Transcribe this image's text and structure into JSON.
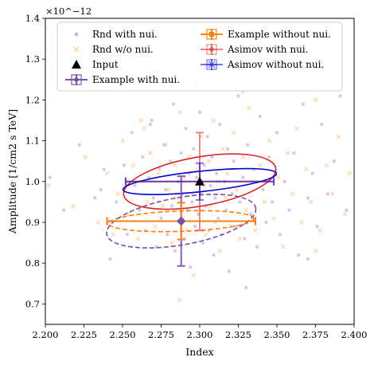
{
  "chart_data": {
    "type": "scatter",
    "xlabel": "Index",
    "ylabel": "Amplitude [1/cm2 s TeV]",
    "y_multiplier_label": "×10^−12",
    "xlim": [
      2.2,
      2.4
    ],
    "ylim": [
      0.65,
      1.4
    ],
    "x_ticks": [
      "2.200",
      "2.225",
      "2.250",
      "2.275",
      "2.300",
      "2.325",
      "2.350",
      "2.375",
      "2.400"
    ],
    "y_ticks": [
      "0.7",
      "0.8",
      "0.9",
      "1.0",
      "1.1",
      "1.2",
      "1.3",
      "1.4"
    ],
    "legend": {
      "placement": "top",
      "entries": [
        {
          "label": "Rnd with nui.",
          "marker": "dot",
          "color": "#8c6bb1"
        },
        {
          "label": "Example without nui.",
          "marker": "square-errbar",
          "color": "#ff7f0e"
        },
        {
          "label": "Rnd w/o nui.",
          "marker": "x",
          "color": "#ffbb78"
        },
        {
          "label": "Asimov with nui.",
          "marker": "diamond-errbar",
          "color": "#d62728"
        },
        {
          "label": "Input",
          "marker": "triangle",
          "color": "#000000"
        },
        {
          "label": "Asimov without nui.",
          "marker": "star-errbar",
          "color": "#0000cc"
        },
        {
          "label": "Example with nui.",
          "marker": "diamond-errbar",
          "color": "#7b4fa8"
        }
      ]
    },
    "input_point": {
      "x": 2.3,
      "y": 1.0
    },
    "example_with_nui": {
      "x": 2.288,
      "y": 0.903,
      "xerr": 0.048,
      "yerr": 0.11,
      "color": "#7b4fa8",
      "ellipse": {
        "rx": 0.049,
        "ry": 0.116,
        "angle_deg": 10,
        "dashed": true
      }
    },
    "example_without_nui": {
      "x": 2.288,
      "y": 0.903,
      "xerr": 0.048,
      "yerr": 0.045,
      "color": "#ff7f0e",
      "ellipse": {
        "rx": 0.047,
        "ry": 0.05,
        "angle_deg": 2,
        "dashed": true
      }
    },
    "asimov_with_nui": {
      "x": 2.3,
      "y": 1.0,
      "xerr": 0.048,
      "yerr": 0.12,
      "color": "#d62728",
      "ellipse": {
        "rx": 0.05,
        "ry": 0.12,
        "angle_deg": 10,
        "dashed": false
      }
    },
    "asimov_without_nui": {
      "x": 2.3,
      "y": 1.0,
      "xerr": 0.048,
      "yerr": 0.045,
      "color": "#0000cc",
      "ellipse": {
        "rx": 0.05,
        "ry": 0.05,
        "angle_deg": 6,
        "dashed": false
      }
    },
    "rnd_with_nui": {
      "color": "#8c6bb1",
      "points": [
        [
          2.203,
          1.01
        ],
        [
          2.212,
          0.93
        ],
        [
          2.222,
          1.09
        ],
        [
          2.232,
          0.96
        ],
        [
          2.238,
          1.03
        ],
        [
          2.242,
          0.81
        ],
        [
          2.246,
          0.95
        ],
        [
          2.251,
          1.04
        ],
        [
          2.253,
          0.87
        ],
        [
          2.256,
          1.12
        ],
        [
          2.258,
          0.99
        ],
        [
          2.261,
          0.93
        ],
        [
          2.263,
          1.06
        ],
        [
          2.265,
          0.88
        ],
        [
          2.267,
          1.01
        ],
        [
          2.269,
          1.15
        ],
        [
          2.27,
          0.96
        ],
        [
          2.272,
          0.84
        ],
        [
          2.274,
          1.03
        ],
        [
          2.275,
          0.91
        ],
        [
          2.277,
          1.09
        ],
        [
          2.278,
          0.98
        ],
        [
          2.279,
          0.87
        ],
        [
          2.281,
          1.05
        ],
        [
          2.282,
          0.94
        ],
        [
          2.283,
          1.19
        ],
        [
          2.284,
          0.83
        ],
        [
          2.286,
          1.0
        ],
        [
          2.287,
          0.9
        ],
        [
          2.288,
          1.07
        ],
        [
          2.289,
          0.97
        ],
        [
          2.29,
          0.86
        ],
        [
          2.291,
          1.13
        ],
        [
          2.292,
          0.93
        ],
        [
          2.293,
          1.02
        ],
        [
          2.294,
          0.79
        ],
        [
          2.295,
          0.95
        ],
        [
          2.296,
          1.08
        ],
        [
          2.297,
          0.89
        ],
        [
          2.298,
          1.01
        ],
        [
          2.299,
          0.92
        ],
        [
          2.3,
          1.17
        ],
        [
          2.301,
          0.97
        ],
        [
          2.302,
          0.85
        ],
        [
          2.303,
          1.04
        ],
        [
          2.304,
          0.94
        ],
        [
          2.305,
          1.11
        ],
        [
          2.306,
          0.88
        ],
        [
          2.307,
          0.99
        ],
        [
          2.308,
          1.06
        ],
        [
          2.309,
          0.82
        ],
        [
          2.31,
          0.96
        ],
        [
          2.311,
          1.02
        ],
        [
          2.312,
          0.91
        ],
        [
          2.313,
          1.14
        ],
        [
          2.314,
          0.87
        ],
        [
          2.316,
          1.0
        ],
        [
          2.317,
          0.93
        ],
        [
          2.318,
          1.08
        ],
        [
          2.319,
          0.78
        ],
        [
          2.321,
          0.97
        ],
        [
          2.322,
          1.05
        ],
        [
          2.323,
          0.89
        ],
        [
          2.325,
          1.21
        ],
        [
          2.326,
          0.95
        ],
        [
          2.328,
          1.01
        ],
        [
          2.329,
          0.86
        ],
        [
          2.331,
          1.09
        ],
        [
          2.333,
          0.92
        ],
        [
          2.335,
          1.03
        ],
        [
          2.337,
          0.84
        ],
        [
          2.339,
          1.16
        ],
        [
          2.341,
          0.98
        ],
        [
          2.343,
          0.9
        ],
        [
          2.345,
          1.06
        ],
        [
          2.347,
          0.95
        ],
        [
          2.35,
          1.12
        ],
        [
          2.352,
          0.87
        ],
        [
          2.355,
          1.0
        ],
        [
          2.358,
          0.93
        ],
        [
          2.361,
          1.07
        ],
        [
          2.364,
          0.82
        ],
        [
          2.367,
          1.19
        ],
        [
          2.37,
          0.96
        ],
        [
          2.373,
          1.02
        ],
        [
          2.376,
          0.89
        ],
        [
          2.379,
          1.14
        ],
        [
          2.383,
          0.97
        ],
        [
          2.387,
          1.05
        ],
        [
          2.391,
          1.21
        ],
        [
          2.395,
          0.93
        ],
        [
          2.298,
          1.24
        ],
        [
          2.268,
          1.14
        ],
        [
          2.33,
          0.74
        ],
        [
          2.37,
          0.81
        ],
        [
          2.236,
          0.98
        ]
      ]
    },
    "rnd_without_nui": {
      "color": "#ffbb78",
      "points": [
        [
          2.202,
          0.99
        ],
        [
          2.218,
          0.94
        ],
        [
          2.226,
          1.06
        ],
        [
          2.234,
          0.9
        ],
        [
          2.24,
          1.02
        ],
        [
          2.247,
          0.97
        ],
        [
          2.25,
          1.1
        ],
        [
          2.254,
          0.92
        ],
        [
          2.257,
          1.04
        ],
        [
          2.26,
          0.86
        ],
        [
          2.262,
          1.0
        ],
        [
          2.264,
          1.13
        ],
        [
          2.266,
          0.95
        ],
        [
          2.268,
          1.07
        ],
        [
          2.271,
          0.89
        ],
        [
          2.273,
          1.02
        ],
        [
          2.276,
          0.94
        ],
        [
          2.278,
          1.09
        ],
        [
          2.28,
          0.98
        ],
        [
          2.282,
          0.85
        ],
        [
          2.284,
          1.04
        ],
        [
          2.285,
          0.96
        ],
        [
          2.287,
          1.17
        ],
        [
          2.289,
          0.91
        ],
        [
          2.29,
          1.01
        ],
        [
          2.292,
          0.88
        ],
        [
          2.293,
          1.06
        ],
        [
          2.295,
          0.97
        ],
        [
          2.296,
          0.77
        ],
        [
          2.298,
          1.03
        ],
        [
          2.3,
          0.93
        ],
        [
          2.301,
          1.11
        ],
        [
          2.303,
          0.99
        ],
        [
          2.304,
          0.87
        ],
        [
          2.306,
          1.05
        ],
        [
          2.307,
          0.94
        ],
        [
          2.309,
          1.15
        ],
        [
          2.31,
          0.9
        ],
        [
          2.312,
          1.0
        ],
        [
          2.313,
          0.83
        ],
        [
          2.315,
          1.08
        ],
        [
          2.317,
          0.96
        ],
        [
          2.318,
          1.02
        ],
        [
          2.32,
          0.89
        ],
        [
          2.322,
          1.12
        ],
        [
          2.324,
          0.98
        ],
        [
          2.326,
          0.86
        ],
        [
          2.328,
          1.06
        ],
        [
          2.33,
          0.93
        ],
        [
          2.332,
          1.18
        ],
        [
          2.334,
          1.0
        ],
        [
          2.336,
          0.88
        ],
        [
          2.339,
          1.04
        ],
        [
          2.342,
          0.95
        ],
        [
          2.345,
          1.1
        ],
        [
          2.348,
          0.91
        ],
        [
          2.351,
          1.01
        ],
        [
          2.354,
          0.84
        ],
        [
          2.357,
          1.07
        ],
        [
          2.36,
          0.97
        ],
        [
          2.363,
          1.13
        ],
        [
          2.366,
          0.9
        ],
        [
          2.369,
          1.03
        ],
        [
          2.372,
          0.95
        ],
        [
          2.375,
          1.2
        ],
        [
          2.378,
          0.88
        ],
        [
          2.382,
          1.04
        ],
        [
          2.386,
          0.97
        ],
        [
          2.39,
          1.11
        ],
        [
          2.394,
          0.92
        ],
        [
          2.397,
          1.02
        ],
        [
          2.287,
          0.71
        ],
        [
          2.262,
          1.15
        ],
        [
          2.328,
          1.22
        ],
        [
          2.375,
          0.83
        ],
        [
          2.244,
          0.87
        ]
      ]
    }
  }
}
